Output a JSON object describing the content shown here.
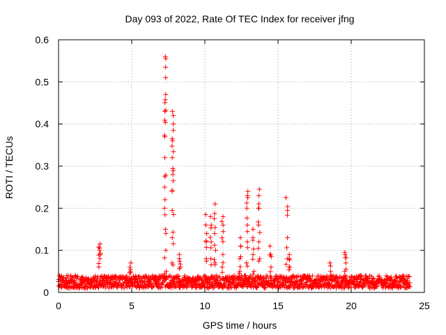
{
  "chart_data": {
    "type": "scatter",
    "title": "Day 093 of 2022, Rate Of TEC Index for receiver jfng",
    "xlabel": "GPS time / hours",
    "ylabel": "ROTI / TECUs",
    "xlim": [
      0,
      25
    ],
    "ylim": [
      0,
      0.6
    ],
    "x_ticks": [
      "0",
      "5",
      "10",
      "15",
      "20",
      "25"
    ],
    "y_ticks": [
      "0",
      "0.1",
      "0.2",
      "0.3",
      "0.4",
      "0.5",
      "0.6"
    ],
    "grid": true,
    "marker": "plus",
    "color": "#ff0000",
    "baseline": {
      "x_start": 0,
      "x_end": 24,
      "min": 0.01,
      "max": 0.04
    },
    "clusters": [
      {
        "x": 2.8,
        "y": [
          0.08,
          0.09,
          0.1,
          0.105,
          0.115
        ]
      },
      {
        "x": 4.9,
        "y": [
          0.05,
          0.06,
          0.07
        ]
      },
      {
        "x": 7.3,
        "y": [
          0.05,
          0.1,
          0.15,
          0.2,
          0.25,
          0.32,
          0.37,
          0.43,
          0.47,
          0.51,
          0.535,
          0.555,
          0.56
        ]
      },
      {
        "x": 7.8,
        "y": [
          0.07,
          0.13,
          0.185,
          0.24,
          0.28,
          0.32,
          0.36,
          0.385,
          0.4,
          0.42,
          0.43
        ]
      },
      {
        "x": 8.3,
        "y": [
          0.06,
          0.08,
          0.09
        ]
      },
      {
        "x": 10.1,
        "y": [
          0.08,
          0.12,
          0.16,
          0.185
        ]
      },
      {
        "x": 10.4,
        "y": [
          0.08,
          0.12,
          0.16,
          0.18
        ]
      },
      {
        "x": 10.7,
        "y": [
          0.07,
          0.1,
          0.14,
          0.175,
          0.21
        ]
      },
      {
        "x": 11.2,
        "y": [
          0.06,
          0.09,
          0.13,
          0.16,
          0.18
        ]
      },
      {
        "x": 12.4,
        "y": [
          0.05,
          0.08,
          0.11,
          0.13
        ]
      },
      {
        "x": 12.9,
        "y": [
          0.07,
          0.12,
          0.16,
          0.2,
          0.23,
          0.24
        ]
      },
      {
        "x": 13.3,
        "y": [
          0.05,
          0.09,
          0.13,
          0.15
        ]
      },
      {
        "x": 13.7,
        "y": [
          0.08,
          0.12,
          0.16,
          0.2,
          0.23,
          0.245
        ]
      },
      {
        "x": 14.5,
        "y": [
          0.06,
          0.09,
          0.11
        ]
      },
      {
        "x": 15.6,
        "y": [
          0.08,
          0.13,
          0.195,
          0.225
        ]
      },
      {
        "x": 15.8,
        "y": [
          0.06,
          0.08,
          0.09
        ]
      },
      {
        "x": 18.6,
        "y": [
          0.05,
          0.07
        ]
      },
      {
        "x": 19.6,
        "y": [
          0.05,
          0.07,
          0.09,
          0.095
        ]
      }
    ]
  }
}
